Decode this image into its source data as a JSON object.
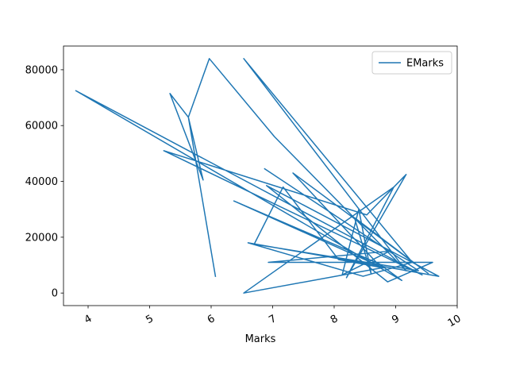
{
  "chart_data": {
    "type": "line",
    "title": "",
    "xlabel": "Marks",
    "ylabel": "",
    "xlim": [
      3.6,
      10.0
    ],
    "ylim": [
      -4500,
      88500
    ],
    "xticks": [
      4,
      5,
      6,
      7,
      8,
      9,
      10
    ],
    "yticks": [
      0,
      20000,
      40000,
      60000,
      80000
    ],
    "ytick_labels": [
      "0",
      "20000",
      "40000",
      "60000",
      "80000"
    ],
    "xtick_labels": [
      "4",
      "5",
      "6",
      "7",
      "8",
      "9",
      "10"
    ],
    "xtick_rotation": -30,
    "grid": false,
    "legend": "top-right",
    "series": [
      {
        "name": "EMarks",
        "color": "#1f77b4",
        "x": [
          6.07,
          5.63,
          5.87,
          5.33,
          5.63,
          5.97,
          7.03,
          9.17,
          6.53,
          9.27,
          8.47,
          6.6,
          9.7,
          6.9,
          8.87,
          9.6,
          6.93,
          8.9,
          8.13,
          8.4,
          8.6,
          8.33,
          9.53,
          7.33,
          8.77,
          6.53,
          8.97,
          8.2,
          9.17,
          8.53,
          5.23,
          9.43,
          3.8,
          9.1,
          8.73,
          6.37,
          8.8,
          8.07,
          7.17,
          6.7,
          9.37,
          6.87
        ],
        "y": [
          6000,
          63000,
          40500,
          71500,
          63000,
          84000,
          56000,
          8000,
          84000,
          11000,
          6000,
          18000,
          6000,
          38500,
          4000,
          11000,
          11000,
          15000,
          6500,
          30000,
          7000,
          27000,
          7000,
          43000,
          9000,
          0,
          38000,
          5500,
          42500,
          28000,
          51000,
          6500,
          72500,
          4500,
          10500,
          33000,
          9000,
          12000,
          38000,
          17500,
          8000,
          44500
        ]
      }
    ]
  }
}
